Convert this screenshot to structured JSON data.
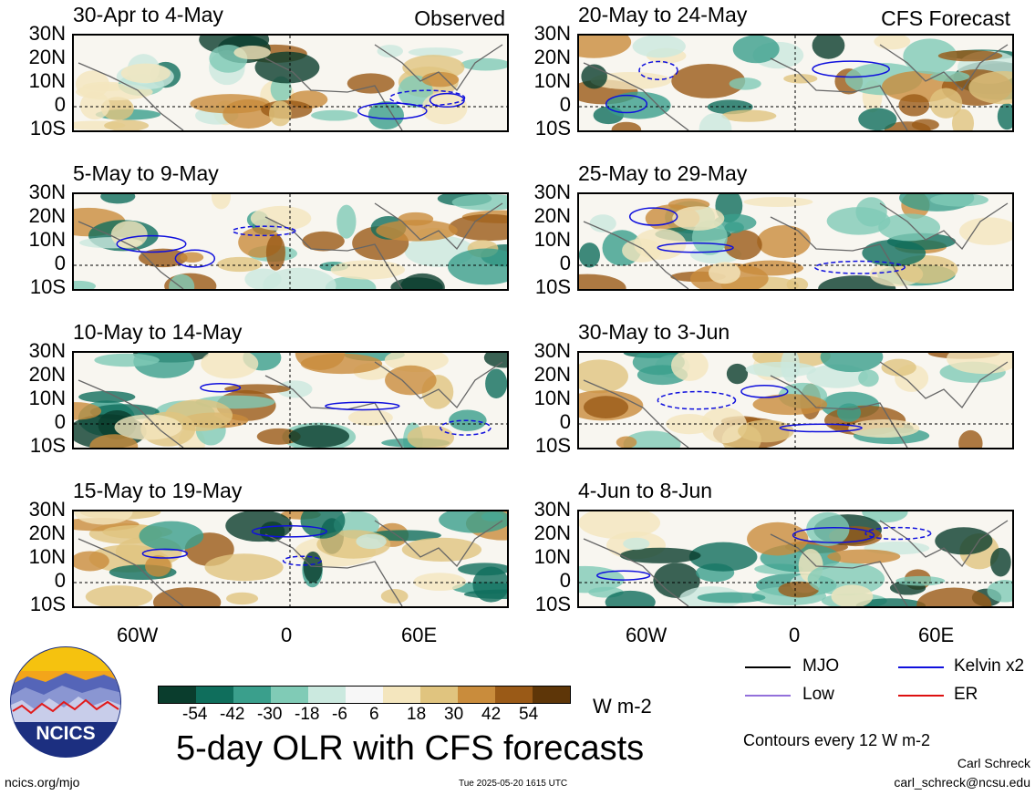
{
  "panels_left": [
    {
      "title": "30-Apr to 4-May",
      "label": "Observed"
    },
    {
      "title": "5-May to 9-May",
      "label": ""
    },
    {
      "title": "10-May to 14-May",
      "label": ""
    },
    {
      "title": "15-May to 19-May",
      "label": ""
    }
  ],
  "panels_right": [
    {
      "title": "20-May to 24-May",
      "label": "CFS Forecast"
    },
    {
      "title": "25-May to 29-May",
      "label": ""
    },
    {
      "title": "30-May to 3-Jun",
      "label": ""
    },
    {
      "title": "4-Jun to 8-Jun",
      "label": ""
    }
  ],
  "lat_labels": [
    "30N",
    "20N",
    "10N",
    "0",
    "10S"
  ],
  "lon_labels": [
    "60W",
    "0",
    "60E"
  ],
  "colorbar": {
    "colors": [
      "#0a3d2d",
      "#0f6e5c",
      "#3a9f8c",
      "#80cbb6",
      "#cbe9df",
      "#f7f7f7",
      "#f4e6be",
      "#e0c47f",
      "#c98c3c",
      "#9a5a17",
      "#5e3608"
    ],
    "ticks": [
      "-54",
      "-42",
      "-30",
      "-18",
      "-6",
      "6",
      "18",
      "30",
      "42",
      "54"
    ],
    "units": "W m-2"
  },
  "title": "5-day OLR with CFS forecasts",
  "legend": {
    "mjo": "MJO",
    "kelvin": "Kelvin x2",
    "low": "Low",
    "er": "ER",
    "contours": "Contours every 12 W m-2"
  },
  "colors": {
    "mjo": "#000000",
    "kelvin": "#1010dd",
    "low": "#9370db",
    "er": "#dd1010"
  },
  "logo_text": "NCICS",
  "footer": {
    "site": "ncics.org/mjo",
    "timestamp": "Tue 2025-05-20 1615 UTC",
    "author": "Carl Schreck",
    "email": "carl_schreck@ncsu.edu"
  }
}
